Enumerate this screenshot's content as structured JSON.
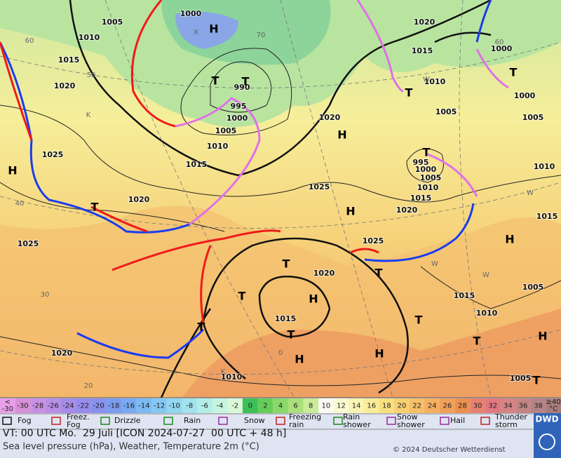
{
  "map": {
    "isobar_labels": [
      "1000",
      "1005",
      "1010",
      "1015",
      "1020",
      "1025",
      "1020",
      "1025",
      "1020",
      "1010",
      "1005",
      "1015",
      "1020",
      "1025",
      "1020",
      "1015",
      "1010",
      "1005",
      "1000",
      "995",
      "1015",
      "1010",
      "1005",
      "1000",
      "995",
      "990",
      "1020",
      "1025",
      "1015",
      "1020",
      "1010",
      "1005",
      "1000",
      "1000",
      "1005",
      "1010",
      "1015",
      "1005",
      "1010",
      "1015"
    ],
    "centers": [
      "H",
      "T",
      "T",
      "H",
      "T",
      "H",
      "T",
      "T",
      "H",
      "T",
      "T",
      "H",
      "H",
      "T",
      "T",
      "H",
      "T",
      "T",
      "T",
      "T",
      "T",
      "H",
      "H"
    ],
    "minor_labels": [
      "60",
      "50",
      "40",
      "30",
      "20",
      "K",
      "K",
      "W",
      "W",
      "W",
      "W",
      "K",
      "0",
      "60",
      "70"
    ]
  },
  "legend": {
    "scale": {
      "low_top": "<",
      "low_bottom": "-30",
      "low_color": "#e8a0e8",
      "ticks": [
        -30,
        -28,
        -26,
        -24,
        -22,
        -20,
        -18,
        -16,
        -14,
        -12,
        -10,
        -8,
        -6,
        -4,
        -2,
        0,
        2,
        4,
        6,
        8,
        10,
        12,
        14,
        16,
        18,
        20,
        22,
        24,
        26,
        28,
        30,
        32,
        34,
        36,
        38
      ],
      "colors": [
        "#d890d8",
        "#c890e0",
        "#b88ee6",
        "#a68ce8",
        "#968cec",
        "#8890ee",
        "#7c9cf0",
        "#78aaf2",
        "#7cbaf2",
        "#84c8f2",
        "#92d6f0",
        "#a2e2ec",
        "#b2eee6",
        "#c6f4e0",
        "#daf8d8",
        "#3cc058",
        "#66cc58",
        "#8ad86a",
        "#aae07c",
        "#c8ec98",
        "#fafaf2",
        "#fafad2",
        "#f8f4b2",
        "#f8ec98",
        "#f8e080",
        "#f8d070",
        "#f6c068",
        "#f4b060",
        "#f0a058",
        "#ec9050",
        "#e88070",
        "#e07880",
        "#d48484",
        "#c48484",
        "#b48484"
      ],
      "high_top": "≥40",
      "high_bottom": "°C",
      "high_color": "#a87c7c"
    },
    "weather": [
      [
        "Fog"
      ],
      [
        "Freez.",
        "Fog"
      ],
      [
        "Drizzle"
      ],
      [
        "Rain"
      ],
      [
        "Snow"
      ],
      [
        "Freezing",
        "rain"
      ],
      [
        "Rain",
        "shower"
      ],
      [
        "Snow",
        "shower"
      ],
      [
        "Hail"
      ],
      [
        "Thunder",
        "storm"
      ]
    ]
  },
  "footer": {
    "valid_time": "VT: 00 UTC Mo.  29 Juli [ICON 2024-07-27  00 UTC + 48 h]",
    "description": "Sea level pressure (hPa), Weather, Temperature 2m (°C)",
    "copyright": "© 2024 Deutscher Wetterdienst",
    "logo": "DWD"
  }
}
